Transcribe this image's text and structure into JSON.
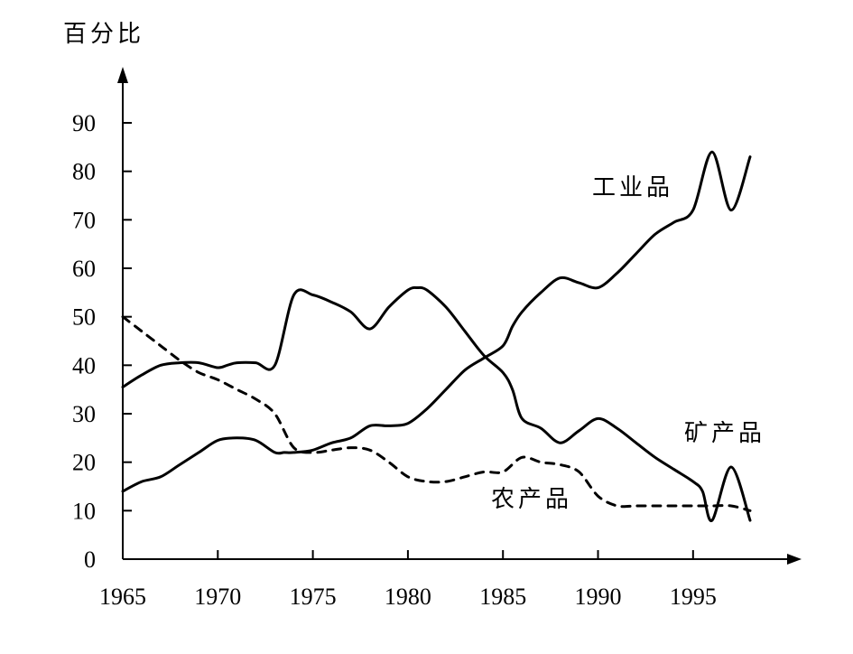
{
  "chart_data": {
    "type": "line",
    "ylabel": "百分比",
    "xlabel": "",
    "xlim": [
      1965,
      1998
    ],
    "ylim": [
      0,
      90
    ],
    "x_ticks": [
      1965,
      1970,
      1975,
      1980,
      1985,
      1990,
      1995
    ],
    "y_ticks": [
      0,
      10,
      20,
      30,
      40,
      50,
      60,
      70,
      80,
      90
    ],
    "legend": "inline labels",
    "series": [
      {
        "name": "工业品",
        "style": "solid",
        "color": "#000000",
        "x": [
          1965,
          1966,
          1967,
          1968,
          1969,
          1970,
          1971,
          1972,
          1973,
          1973.5,
          1974,
          1975,
          1976,
          1977,
          1978,
          1979,
          1980,
          1981,
          1982,
          1983,
          1984,
          1985,
          1985.5,
          1986,
          1987,
          1988,
          1989,
          1990,
          1991,
          1992,
          1993,
          1994,
          1995,
          1996,
          1997,
          1998
        ],
        "values": [
          14,
          16,
          17,
          19.5,
          22,
          24.5,
          25,
          24.5,
          22,
          22,
          22,
          22.5,
          24,
          25,
          27.5,
          27.5,
          28,
          31,
          35,
          39,
          41.5,
          44,
          48,
          51,
          55,
          58,
          57,
          56,
          59,
          63,
          67,
          69.5,
          72,
          84,
          72,
          83
        ]
      },
      {
        "name": "矿产品",
        "style": "solid",
        "color": "#000000",
        "x": [
          1965,
          1966,
          1967,
          1968,
          1969,
          1970,
          1970.5,
          1971,
          1972,
          1973,
          1974,
          1975,
          1976,
          1977,
          1978,
          1979,
          1980,
          1980.5,
          1981,
          1982,
          1983,
          1984,
          1985,
          1985.5,
          1986,
          1987,
          1988,
          1989,
          1990,
          1991,
          1992,
          1993,
          1994,
          1995,
          1995.5,
          1996,
          1997,
          1998
        ],
        "values": [
          35.5,
          38,
          40,
          40.5,
          40.5,
          39.5,
          40,
          40.5,
          40.5,
          40,
          54.5,
          54.5,
          53,
          51,
          47.5,
          52,
          55.5,
          56,
          55.5,
          52,
          47,
          42,
          38.5,
          35,
          29,
          27,
          24,
          26.5,
          29,
          27,
          24,
          21,
          18.5,
          16,
          14,
          8,
          19,
          8
        ]
      },
      {
        "name": "农产品",
        "style": "dashed",
        "color": "#000000",
        "x": [
          1965,
          1966,
          1967,
          1968,
          1969,
          1970,
          1971,
          1972,
          1973,
          1974,
          1975,
          1976,
          1977,
          1978,
          1979,
          1980,
          1981,
          1982,
          1983,
          1984,
          1985,
          1986,
          1987,
          1988,
          1989,
          1990,
          1991,
          1992,
          1993,
          1994,
          1995,
          1996,
          1997,
          1998
        ],
        "values": [
          50,
          47,
          44,
          41,
          38.5,
          37,
          35,
          33,
          30,
          23,
          22,
          22.5,
          23,
          22.5,
          20,
          17,
          16,
          16,
          17,
          18,
          18,
          21,
          20,
          19.5,
          18,
          13,
          11,
          11,
          11,
          11,
          11,
          11,
          11,
          10
        ]
      }
    ],
    "annotations": [
      {
        "text": "工业品",
        "series": "工业品"
      },
      {
        "text": "矿产品",
        "series": "矿产品"
      },
      {
        "text": "农产品",
        "series": "农产品"
      }
    ]
  }
}
